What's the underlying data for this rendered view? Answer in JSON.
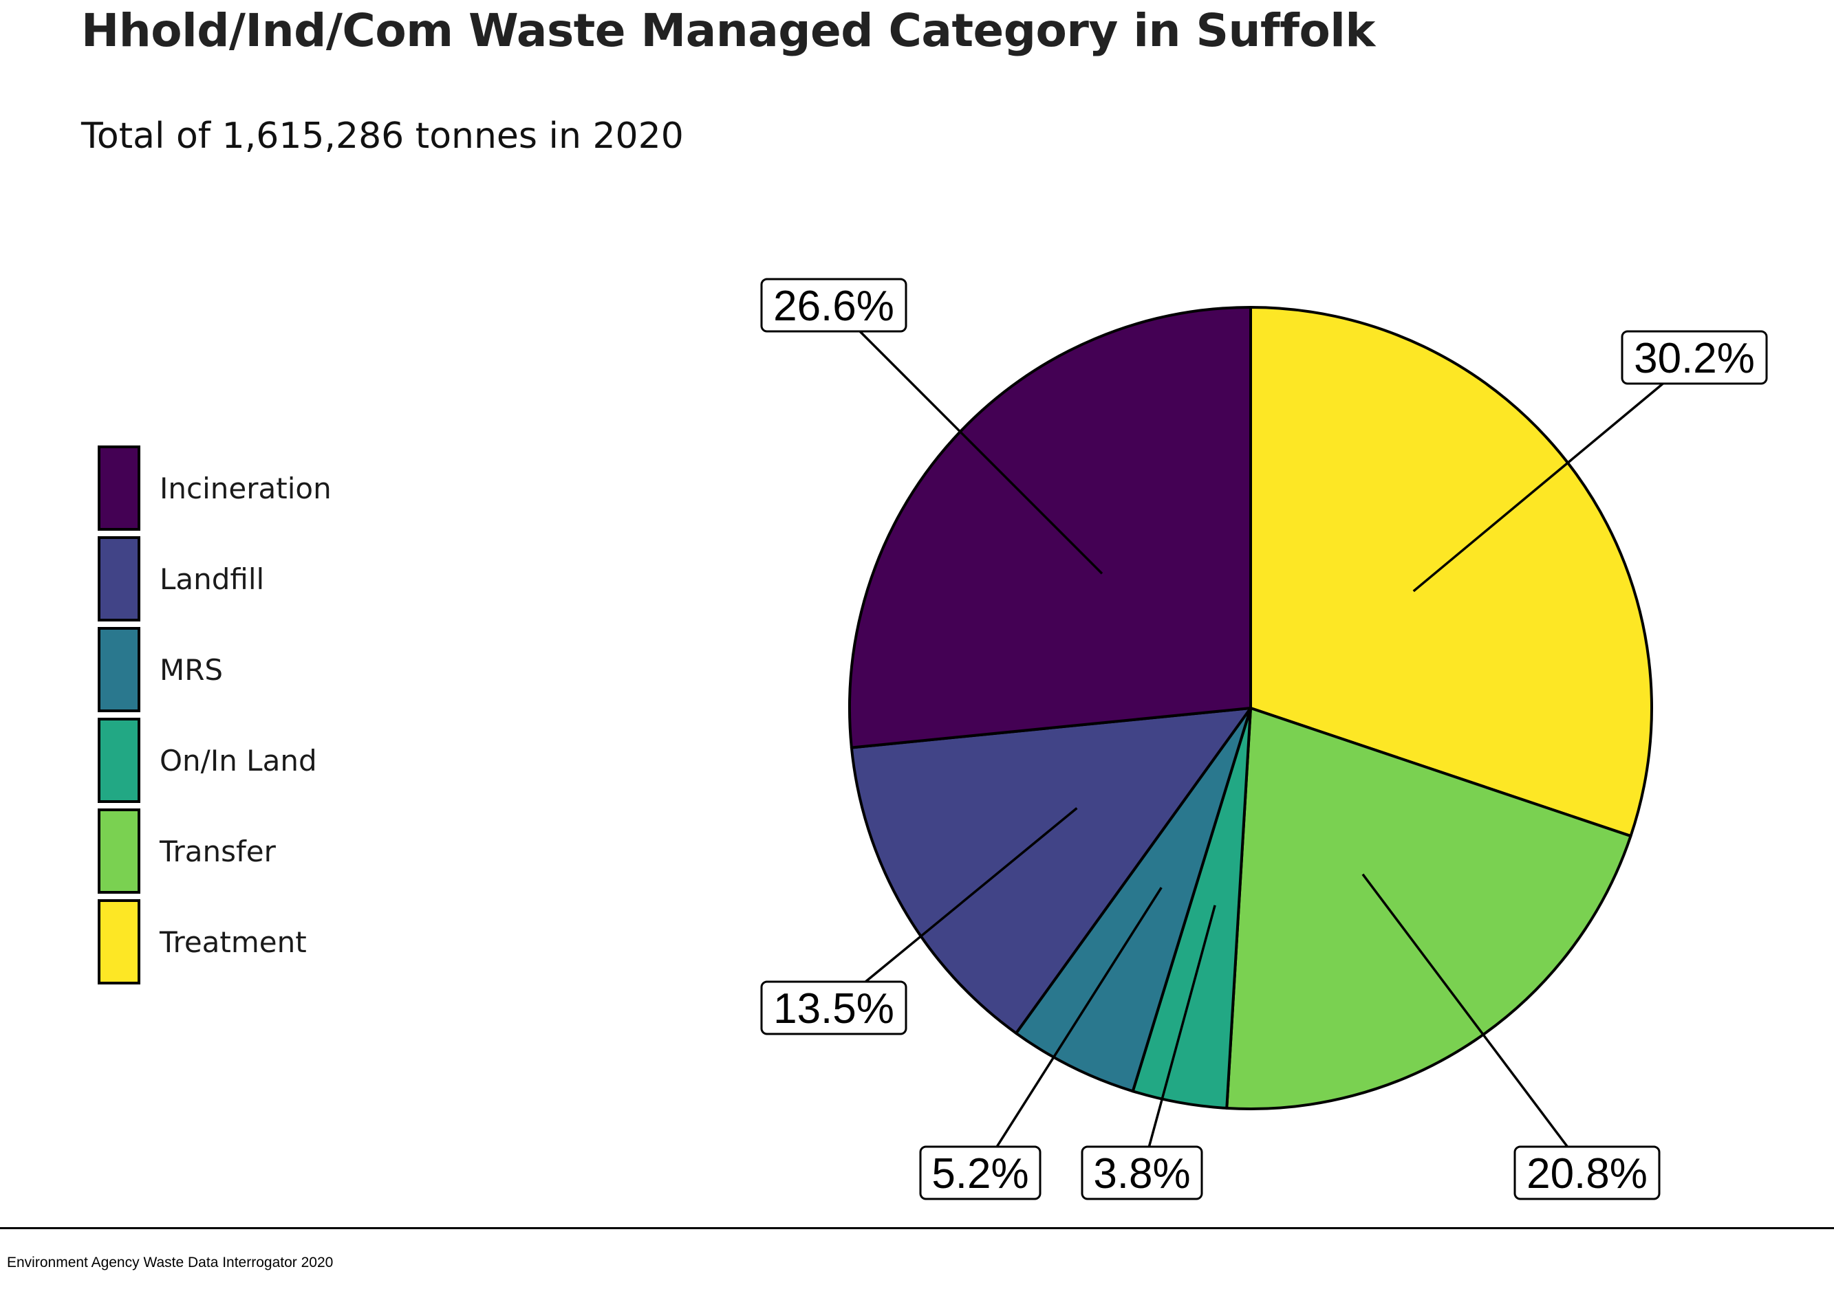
{
  "chart_data": {
    "type": "pie",
    "title": "Hhold/Ind/Com Waste Managed Category in Suffolk",
    "subtitle": "Total of 1,615,286 tonnes in 2020",
    "categories": [
      "Incineration",
      "Landfill",
      "MRS",
      "On/In Land",
      "Transfer",
      "Treatment"
    ],
    "values": [
      26.6,
      13.5,
      5.2,
      3.8,
      20.8,
      30.2
    ],
    "labels": [
      "26.6%",
      "13.5%",
      "5.2%",
      "3.8%",
      "20.8%",
      "30.2%"
    ],
    "colors": [
      "#440154",
      "#414487",
      "#2a788e",
      "#22a884",
      "#7ad151",
      "#fde725"
    ],
    "legend_position": "left",
    "slice_order": "clockwise from top, Treatment first",
    "source": "Environment Agency Waste Data Interrogator 2020"
  }
}
